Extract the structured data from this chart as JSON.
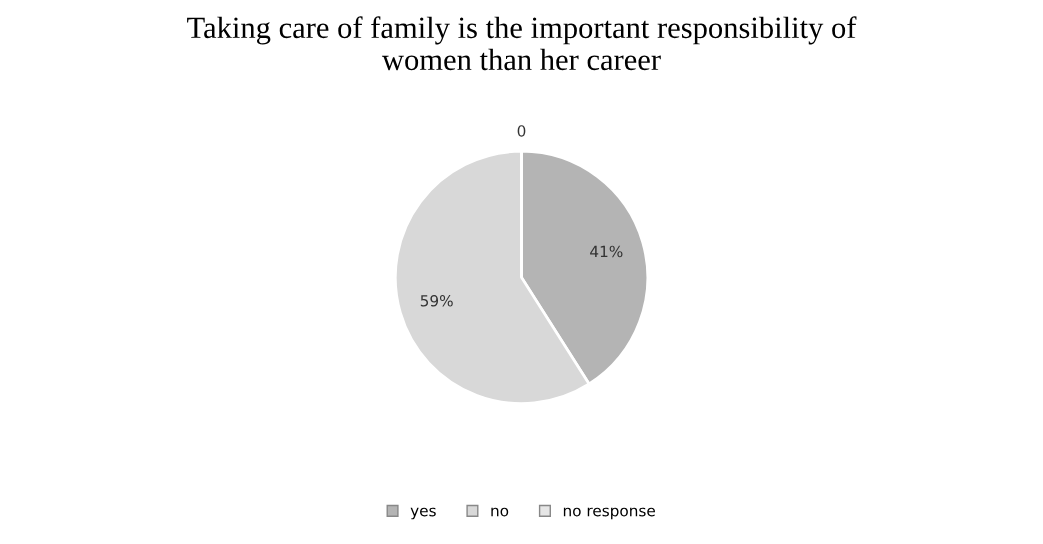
{
  "chart_data": {
    "type": "pie",
    "title": "Taking care of family is the important responsibility of\nwomen than her career",
    "categories": [
      "yes",
      "no",
      "no response"
    ],
    "values": [
      41,
      59,
      0
    ],
    "value_labels": [
      "41%",
      "59%",
      "0"
    ],
    "colors": [
      "#b4b4b4",
      "#d8d8d8",
      "#e6e6e6"
    ],
    "legend": "bottom"
  }
}
